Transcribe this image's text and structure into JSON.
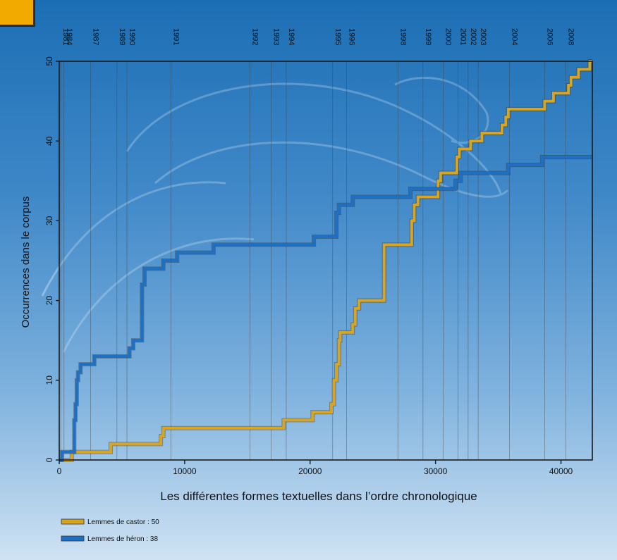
{
  "chart_data": {
    "type": "line",
    "line_style": "step",
    "xlabel": "Les différentes formes textuelles dans l’ordre chronologique",
    "ylabel": "Occurrences dans le corpus",
    "xlim": [
      0,
      42500
    ],
    "ylim": [
      0,
      50
    ],
    "x_ticks": [
      0,
      10000,
      20000,
      30000,
      40000
    ],
    "x_tick_labels": [
      "0",
      "10000",
      "20000",
      "30000",
      "40000"
    ],
    "y_ticks": [
      0,
      10,
      20,
      30,
      40,
      50
    ],
    "y_tick_labels": [
      "0",
      "10",
      "20",
      "30",
      "40",
      "50"
    ],
    "grid": false,
    "legend_position": "bottom-left",
    "year_markers": [
      {
        "year": "1981",
        "x": 120
      },
      {
        "year": "1984",
        "x": 380
      },
      {
        "year": "1987",
        "x": 2500
      },
      {
        "year": "1989",
        "x": 4600
      },
      {
        "year": "1990",
        "x": 5400
      },
      {
        "year": "1991",
        "x": 8900
      },
      {
        "year": "1992",
        "x": 15200
      },
      {
        "year": "1993",
        "x": 16900
      },
      {
        "year": "1994",
        "x": 18100
      },
      {
        "year": "1995",
        "x": 21800
      },
      {
        "year": "1996",
        "x": 22900
      },
      {
        "year": "1998",
        "x": 27000
      },
      {
        "year": "1999",
        "x": 29000
      },
      {
        "year": "2000",
        "x": 30600
      },
      {
        "year": "2001",
        "x": 31800
      },
      {
        "year": "2002",
        "x": 32600
      },
      {
        "year": "2003",
        "x": 33400
      },
      {
        "year": "2004",
        "x": 35900
      },
      {
        "year": "2006",
        "x": 38700
      },
      {
        "year": "2008",
        "x": 40400
      }
    ],
    "series": [
      {
        "name": "Lemmes de castor : 50",
        "color": "#d9a520",
        "points": [
          [
            0,
            0
          ],
          [
            1000,
            1
          ],
          [
            4100,
            2
          ],
          [
            8100,
            3
          ],
          [
            8300,
            4
          ],
          [
            17900,
            5
          ],
          [
            20200,
            6
          ],
          [
            21700,
            7
          ],
          [
            21900,
            10
          ],
          [
            22100,
            12
          ],
          [
            22300,
            15
          ],
          [
            22400,
            16
          ],
          [
            23400,
            17
          ],
          [
            23600,
            19
          ],
          [
            23900,
            20
          ],
          [
            25900,
            27
          ],
          [
            28100,
            30
          ],
          [
            28300,
            32
          ],
          [
            28600,
            33
          ],
          [
            30200,
            35
          ],
          [
            30400,
            36
          ],
          [
            31700,
            38
          ],
          [
            31900,
            39
          ],
          [
            32800,
            40
          ],
          [
            33700,
            41
          ],
          [
            35300,
            42
          ],
          [
            35600,
            43
          ],
          [
            35800,
            44
          ],
          [
            38700,
            45
          ],
          [
            39400,
            46
          ],
          [
            40600,
            47
          ],
          [
            40800,
            48
          ],
          [
            41400,
            49
          ],
          [
            42300,
            50
          ],
          [
            42500,
            50
          ]
        ]
      },
      {
        "name": "Lemmes de héron : 38",
        "color": "#1f6fc2",
        "points": [
          [
            0,
            0
          ],
          [
            200,
            1
          ],
          [
            1200,
            5
          ],
          [
            1300,
            7
          ],
          [
            1400,
            10
          ],
          [
            1500,
            11
          ],
          [
            1700,
            12
          ],
          [
            2800,
            13
          ],
          [
            5600,
            14
          ],
          [
            5900,
            15
          ],
          [
            6600,
            22
          ],
          [
            6800,
            24
          ],
          [
            8300,
            25
          ],
          [
            9400,
            26
          ],
          [
            12300,
            27
          ],
          [
            20300,
            28
          ],
          [
            22100,
            31
          ],
          [
            22300,
            32
          ],
          [
            23400,
            33
          ],
          [
            28000,
            34
          ],
          [
            30800,
            34
          ],
          [
            31600,
            35
          ],
          [
            32000,
            36
          ],
          [
            35800,
            37
          ],
          [
            38500,
            38
          ],
          [
            42500,
            38
          ]
        ]
      }
    ]
  }
}
